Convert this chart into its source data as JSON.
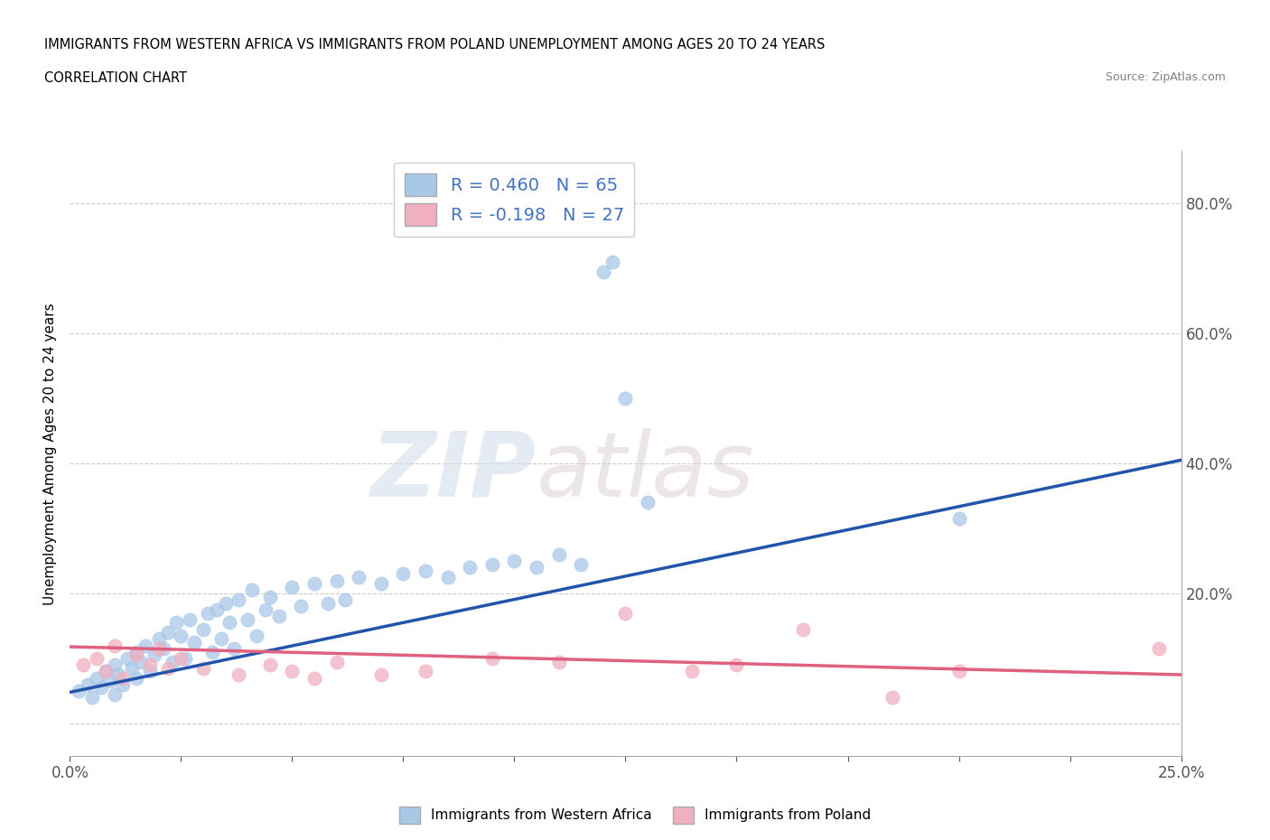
{
  "title_line1": "IMMIGRANTS FROM WESTERN AFRICA VS IMMIGRANTS FROM POLAND UNEMPLOYMENT AMONG AGES 20 TO 24 YEARS",
  "title_line2": "CORRELATION CHART",
  "source_text": "Source: ZipAtlas.com",
  "ylabel": "Unemployment Among Ages 20 to 24 years",
  "xlim": [
    0.0,
    0.25
  ],
  "ylim": [
    -0.05,
    0.88
  ],
  "xticks": [
    0.0,
    0.025,
    0.05,
    0.075,
    0.1,
    0.125,
    0.15,
    0.175,
    0.2,
    0.225,
    0.25
  ],
  "ytick_positions": [
    0.0,
    0.2,
    0.4,
    0.6,
    0.8
  ],
  "ytick_labels": [
    "",
    "20.0%",
    "40.0%",
    "60.0%",
    "80.0%"
  ],
  "R_blue": 0.46,
  "N_blue": 65,
  "R_pink": -0.198,
  "N_pink": 27,
  "color_blue": "#a8c8e8",
  "color_pink": "#f0b0c0",
  "color_blue_line": "#2255aa",
  "color_pink_line": "#e06080",
  "legend_label_blue": "Immigrants from Western Africa",
  "legend_label_pink": "Immigrants from Poland",
  "watermark_zip": "ZIP",
  "watermark_atlas": "atlas",
  "background_color": "#ffffff",
  "grid_color": "#cccccc",
  "blue_trend_y0": 0.048,
  "blue_trend_y1": 0.405,
  "pink_trend_y0": 0.118,
  "pink_trend_y1": 0.075,
  "blue_scatter_x": [
    0.002,
    0.004,
    0.005,
    0.006,
    0.007,
    0.008,
    0.009,
    0.01,
    0.01,
    0.011,
    0.012,
    0.013,
    0.014,
    0.015,
    0.015,
    0.016,
    0.017,
    0.018,
    0.019,
    0.02,
    0.021,
    0.022,
    0.023,
    0.024,
    0.025,
    0.026,
    0.027,
    0.028,
    0.03,
    0.031,
    0.032,
    0.033,
    0.034,
    0.035,
    0.036,
    0.037,
    0.038,
    0.04,
    0.041,
    0.042,
    0.044,
    0.045,
    0.047,
    0.05,
    0.052,
    0.055,
    0.058,
    0.06,
    0.062,
    0.065,
    0.07,
    0.075,
    0.08,
    0.085,
    0.09,
    0.095,
    0.1,
    0.105,
    0.11,
    0.115,
    0.12,
    0.122,
    0.125,
    0.13,
    0.2
  ],
  "blue_scatter_y": [
    0.05,
    0.06,
    0.04,
    0.07,
    0.055,
    0.08,
    0.065,
    0.09,
    0.045,
    0.075,
    0.06,
    0.1,
    0.085,
    0.11,
    0.07,
    0.095,
    0.12,
    0.08,
    0.105,
    0.13,
    0.115,
    0.14,
    0.095,
    0.155,
    0.135,
    0.1,
    0.16,
    0.125,
    0.145,
    0.17,
    0.11,
    0.175,
    0.13,
    0.185,
    0.155,
    0.115,
    0.19,
    0.16,
    0.205,
    0.135,
    0.175,
    0.195,
    0.165,
    0.21,
    0.18,
    0.215,
    0.185,
    0.22,
    0.19,
    0.225,
    0.215,
    0.23,
    0.235,
    0.225,
    0.24,
    0.245,
    0.25,
    0.24,
    0.26,
    0.245,
    0.695,
    0.71,
    0.5,
    0.34,
    0.315
  ],
  "pink_scatter_x": [
    0.003,
    0.006,
    0.008,
    0.01,
    0.012,
    0.015,
    0.018,
    0.02,
    0.022,
    0.025,
    0.03,
    0.038,
    0.045,
    0.05,
    0.055,
    0.06,
    0.07,
    0.08,
    0.095,
    0.11,
    0.125,
    0.14,
    0.15,
    0.165,
    0.185,
    0.2,
    0.245
  ],
  "pink_scatter_y": [
    0.09,
    0.1,
    0.08,
    0.12,
    0.07,
    0.105,
    0.09,
    0.115,
    0.085,
    0.1,
    0.085,
    0.075,
    0.09,
    0.08,
    0.07,
    0.095,
    0.075,
    0.08,
    0.1,
    0.095,
    0.17,
    0.08,
    0.09,
    0.145,
    0.04,
    0.08,
    0.115
  ]
}
